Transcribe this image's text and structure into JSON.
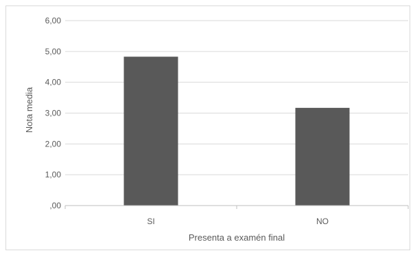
{
  "chart_data": {
    "type": "bar",
    "categories": [
      "SI",
      "NO"
    ],
    "values": [
      4.83,
      3.17
    ],
    "ylim": [
      0,
      6
    ],
    "yticks": [
      0,
      1,
      2,
      3,
      4,
      5,
      6
    ],
    "ytick_labels": [
      ",00",
      "1,00",
      "2,00",
      "3,00",
      "4,00",
      "5,00",
      "6,00"
    ],
    "xlabel": "Presenta a examén final",
    "ylabel": "Nota media",
    "grid": "horizontal",
    "legend": "none",
    "colors": {
      "bar": "#595959",
      "grid": "#d9d9d9",
      "axis": "#bfbfbf",
      "text": "#595959"
    }
  }
}
